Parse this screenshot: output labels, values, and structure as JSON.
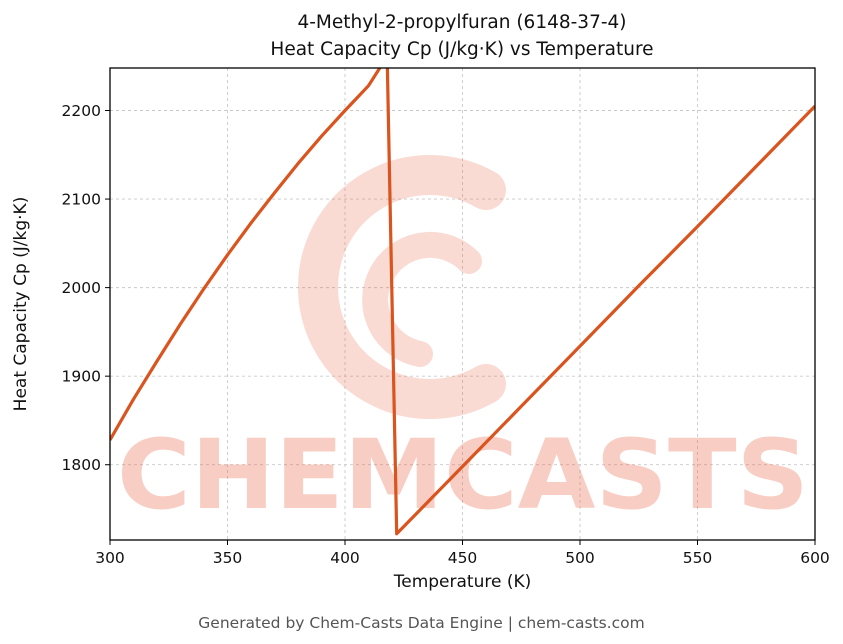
{
  "title": {
    "line1": "4-Methyl-2-propylfuran (6148-37-4)",
    "line2": "Heat Capacity Cp (J/kg·K) vs Temperature"
  },
  "footer": {
    "text": "Generated by Chem-Casts Data Engine | chem-casts.com"
  },
  "watermark": {
    "text": "CHEMCASTS",
    "logo": "c-swirl-logo",
    "color": "#e8593a"
  },
  "chart_data": {
    "type": "line",
    "title": "4-Methyl-2-propylfuran (6148-37-4)\nHeat Capacity Cp (J/kg·K) vs Temperature",
    "xlabel": "Temperature (K)",
    "ylabel": "Heat Capacity Cp (J/kg·K)",
    "xlim": [
      300,
      600
    ],
    "ylim": [
      1715,
      2248
    ],
    "xticks": [
      300,
      350,
      400,
      450,
      500,
      550,
      600
    ],
    "yticks": [
      1800,
      1900,
      2000,
      2100,
      2200
    ],
    "grid": true,
    "grid_style": "dashed",
    "legend": false,
    "line_color": "#d9541e",
    "line_width": 3.2,
    "series": [
      {
        "name": "Heat Capacity Cp",
        "points": [
          [
            300,
            1828
          ],
          [
            310,
            1874
          ],
          [
            320,
            1917
          ],
          [
            330,
            1959
          ],
          [
            340,
            1999
          ],
          [
            350,
            2037
          ],
          [
            360,
            2073
          ],
          [
            370,
            2107
          ],
          [
            380,
            2140
          ],
          [
            390,
            2171
          ],
          [
            400,
            2200
          ],
          [
            405,
            2214
          ],
          [
            410,
            2228
          ],
          [
            416,
            2253
          ],
          [
            418,
            2253
          ],
          [
            422,
            1722
          ],
          [
            450,
            1798
          ],
          [
            475,
            1866
          ],
          [
            500,
            1934
          ],
          [
            525,
            2002
          ],
          [
            550,
            2069
          ],
          [
            575,
            2137
          ],
          [
            600,
            2205
          ]
        ]
      }
    ]
  }
}
